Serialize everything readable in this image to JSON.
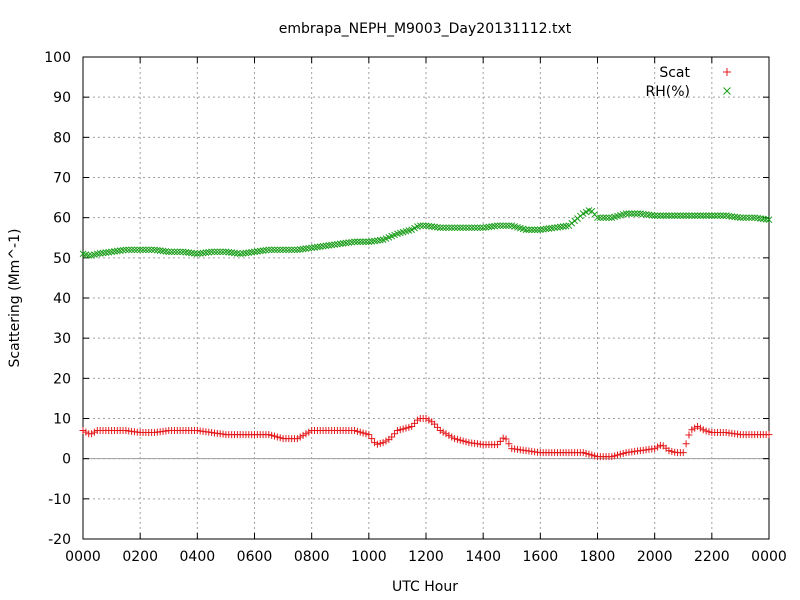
{
  "chart_data": {
    "type": "scatter",
    "title": "embrapa_NEPH_M9003_Day20131112.txt",
    "xlabel": "UTC Hour",
    "ylabel": "Scattering (Mm^-1)",
    "xlim": [
      0,
      24
    ],
    "ylim": [
      -20,
      100
    ],
    "x_ticks": [
      "0000",
      "0200",
      "0400",
      "0600",
      "0800",
      "1000",
      "1200",
      "1400",
      "1600",
      "1800",
      "2000",
      "2200",
      "0000"
    ],
    "y_ticks": [
      "-20",
      "-10",
      "0",
      "10",
      "20",
      "30",
      "40",
      "50",
      "60",
      "70",
      "80",
      "90",
      "100"
    ],
    "grid": true,
    "legend_position": "top-right",
    "series": [
      {
        "name": "Scat",
        "color": "#e41a1c",
        "marker": "plus",
        "x": [
          0.0,
          0.25,
          0.5,
          1.0,
          1.5,
          2.0,
          2.5,
          3.0,
          3.5,
          4.0,
          4.5,
          5.0,
          5.5,
          6.0,
          6.5,
          7.0,
          7.5,
          8.0,
          8.5,
          9.0,
          9.5,
          10.0,
          10.25,
          10.5,
          10.75,
          11.0,
          11.5,
          11.75,
          12.0,
          12.25,
          12.5,
          12.75,
          13.0,
          13.5,
          14.0,
          14.5,
          14.75,
          15.0,
          15.5,
          16.0,
          16.5,
          17.0,
          17.5,
          18.0,
          18.25,
          18.5,
          18.75,
          19.0,
          19.5,
          20.0,
          20.25,
          20.5,
          20.75,
          21.0,
          21.25,
          21.5,
          21.75,
          22.0,
          22.5,
          23.0,
          23.5,
          24.0
        ],
        "y": [
          7,
          6,
          7,
          7,
          7,
          6.5,
          6.5,
          7,
          7,
          7,
          6.5,
          6,
          6,
          6,
          6,
          5,
          5,
          7,
          7,
          7,
          7,
          6,
          3.5,
          4,
          5,
          7,
          8,
          10,
          10,
          9,
          7,
          6,
          5,
          4,
          3.5,
          3.5,
          5.5,
          2.5,
          2,
          1.5,
          1.5,
          1.5,
          1.5,
          0.5,
          0.5,
          0.5,
          1,
          1.5,
          2,
          2.5,
          3.5,
          2,
          1.5,
          1.5,
          7,
          8,
          7,
          6.5,
          6.5,
          6,
          6,
          6
        ]
      },
      {
        "name": "RH(%)",
        "color": "#1a9e1a",
        "marker": "cross",
        "x": [
          0.0,
          0.25,
          0.5,
          1.0,
          1.5,
          2.0,
          2.5,
          3.0,
          3.5,
          4.0,
          4.5,
          5.0,
          5.5,
          6.0,
          6.5,
          7.0,
          7.5,
          8.0,
          8.5,
          9.0,
          9.5,
          10.0,
          10.5,
          11.0,
          11.5,
          11.75,
          12.0,
          12.5,
          13.0,
          13.5,
          14.0,
          14.5,
          15.0,
          15.5,
          16.0,
          16.5,
          17.0,
          17.5,
          17.75,
          18.0,
          18.5,
          19.0,
          19.5,
          20.0,
          20.5,
          21.0,
          21.5,
          22.0,
          22.5,
          23.0,
          23.5,
          24.0
        ],
        "y": [
          51,
          50.5,
          51,
          51.5,
          52,
          52,
          52,
          51.5,
          51.5,
          51,
          51.5,
          51.5,
          51,
          51.5,
          52,
          52,
          52,
          52.5,
          53,
          53.5,
          54,
          54,
          54.5,
          56,
          57,
          58,
          58,
          57.5,
          57.5,
          57.5,
          57.5,
          58,
          58,
          57,
          57,
          57.5,
          58,
          61,
          62,
          60,
          60,
          61,
          61,
          60.5,
          60.5,
          60.5,
          60.5,
          60.5,
          60.5,
          60,
          60,
          59.5
        ]
      }
    ]
  }
}
